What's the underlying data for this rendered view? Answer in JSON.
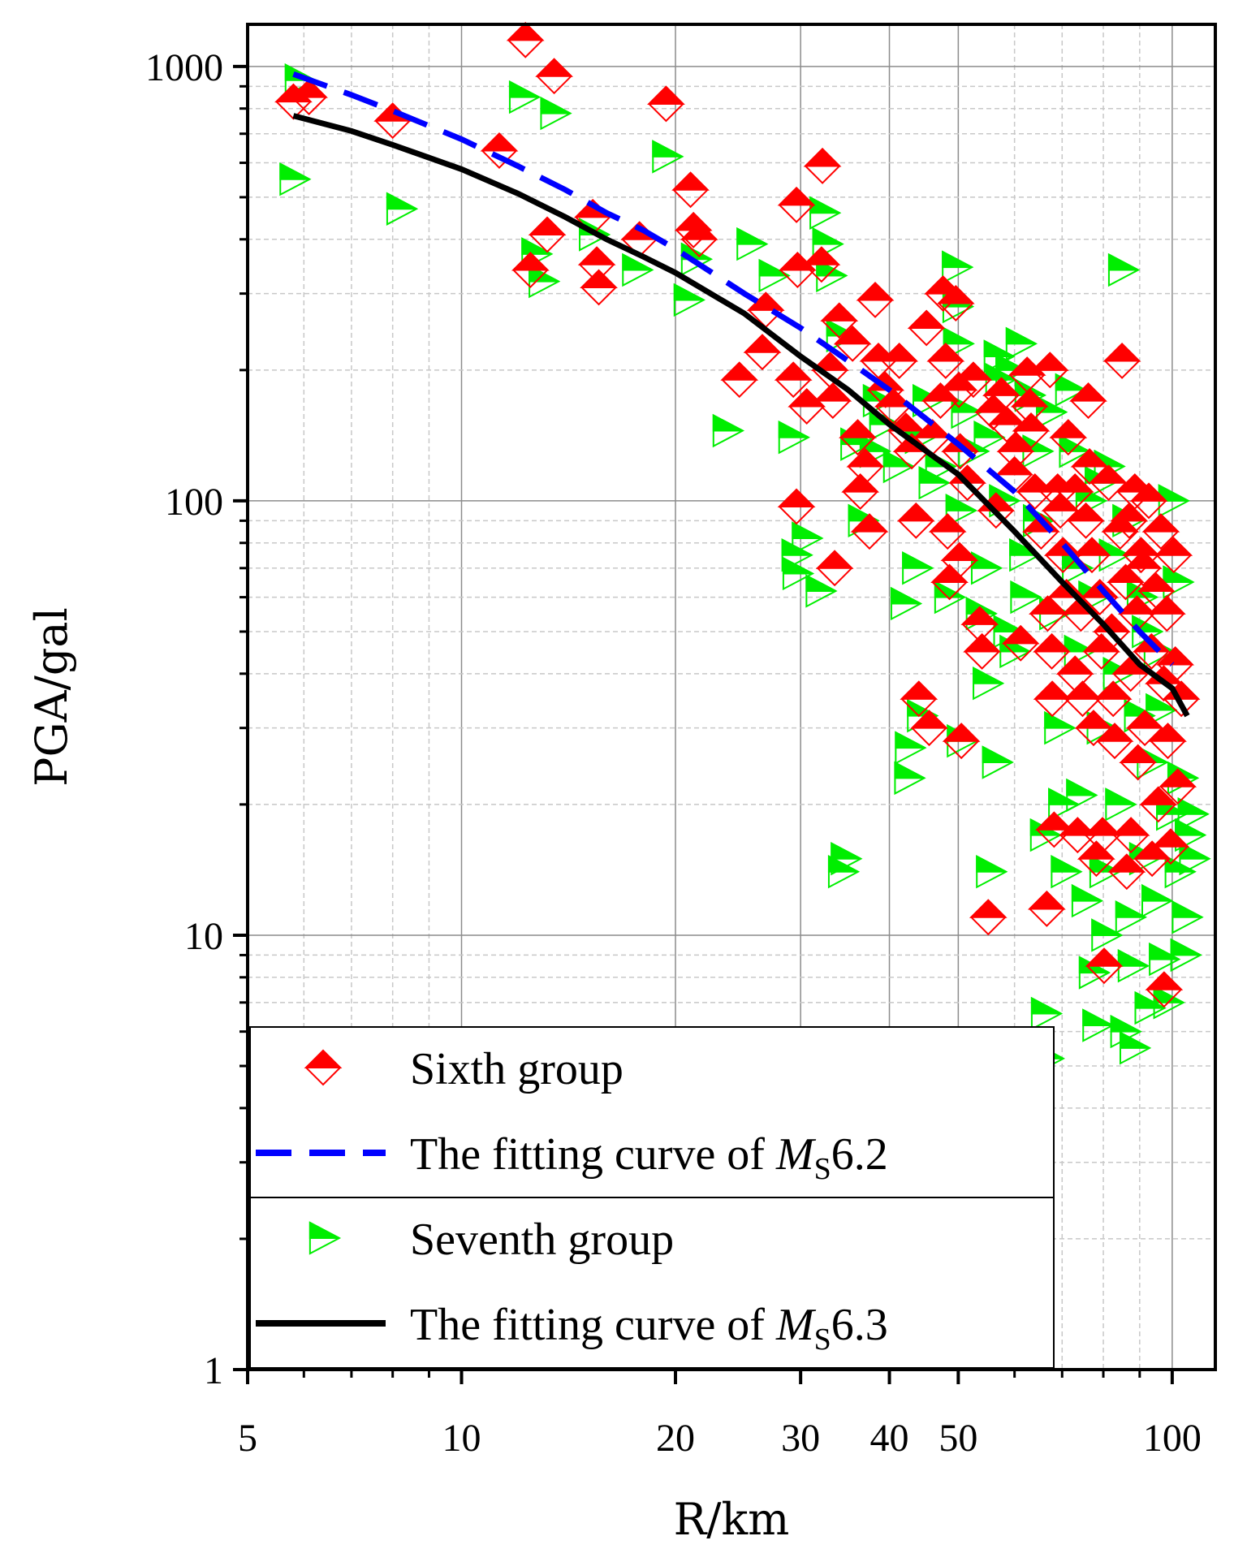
{
  "chart_data": {
    "type": "scatter",
    "xscale": "log",
    "yscale": "log",
    "xlabel": "R/km",
    "ylabel": "PGA/gal",
    "xlim": [
      5,
      115
    ],
    "ylim": [
      1,
      1250
    ],
    "xticks": [
      5,
      10,
      20,
      30,
      40,
      50,
      100
    ],
    "xtick_labels": [
      "5",
      "10",
      "20",
      "30",
      "40",
      "50",
      "100"
    ],
    "yticks": [
      1,
      10,
      100,
      1000
    ],
    "ytick_labels": [
      "1",
      "10",
      "100",
      "1000"
    ],
    "grid": true,
    "legend_position": "lower-left",
    "colors": {
      "sixth": "#ff0000",
      "seventh": "#00ee00",
      "fit62": "#0000ff",
      "fit63": "#000000"
    },
    "legend": [
      {
        "label": "Sixth group",
        "marker": "diamond",
        "series": "sixth"
      },
      {
        "label_prefix": "The fitting curve of ",
        "label_var": "M",
        "label_sub": "S",
        "label_suffix": "6.2",
        "line": "dashed",
        "series": "fit62"
      },
      {
        "label": "Seventh group",
        "marker": "triangle-right",
        "series": "seventh"
      },
      {
        "label_prefix": "The fitting curve of ",
        "label_var": "M",
        "label_sub": "S",
        "label_suffix": "6.3",
        "line": "solid",
        "series": "fit63"
      }
    ],
    "series": [
      {
        "name": "Sixth group",
        "key": "sixth",
        "points": [
          [
            5.8,
            830
          ],
          [
            6.1,
            850
          ],
          [
            8.0,
            750
          ],
          [
            11.3,
            640
          ],
          [
            12.3,
            1150
          ],
          [
            13.5,
            950
          ],
          [
            12.5,
            340
          ],
          [
            13.2,
            410
          ],
          [
            15.3,
            450
          ],
          [
            15.5,
            350
          ],
          [
            15.6,
            310
          ],
          [
            17.8,
            400
          ],
          [
            19.4,
            820
          ],
          [
            21.0,
            520
          ],
          [
            21.2,
            420
          ],
          [
            21.6,
            400
          ],
          [
            24.6,
            190
          ],
          [
            26.5,
            220
          ],
          [
            26.8,
            275
          ],
          [
            29.6,
            480
          ],
          [
            29.7,
            340
          ],
          [
            29.3,
            190
          ],
          [
            30.6,
            165
          ],
          [
            29.6,
            97
          ],
          [
            32.2,
            590
          ],
          [
            32.1,
            350
          ],
          [
            33.0,
            200
          ],
          [
            33.3,
            170
          ],
          [
            33.5,
            70
          ],
          [
            34.0,
            260
          ],
          [
            35.5,
            230
          ],
          [
            36.1,
            140
          ],
          [
            36.4,
            105
          ],
          [
            37.0,
            120
          ],
          [
            37.5,
            85
          ],
          [
            38.2,
            290
          ],
          [
            38.6,
            210
          ],
          [
            39.5,
            180
          ],
          [
            40.5,
            165
          ],
          [
            41.3,
            210
          ],
          [
            42.2,
            145
          ],
          [
            43.0,
            130
          ],
          [
            43.6,
            90
          ],
          [
            44.0,
            35
          ],
          [
            45.1,
            250
          ],
          [
            45.5,
            30
          ],
          [
            46.0,
            140
          ],
          [
            47.2,
            170
          ],
          [
            47.6,
            300
          ],
          [
            48.0,
            210
          ],
          [
            48.3,
            85
          ],
          [
            48.6,
            65
          ],
          [
            49.6,
            285
          ],
          [
            50.1,
            180
          ],
          [
            50.2,
            73
          ],
          [
            50.3,
            130
          ],
          [
            50.5,
            28
          ],
          [
            51.5,
            110
          ],
          [
            52.5,
            190
          ],
          [
            53.6,
            52
          ],
          [
            54.0,
            45
          ],
          [
            55.1,
            11
          ],
          [
            56.0,
            160
          ],
          [
            56.5,
            95
          ],
          [
            57.5,
            175
          ],
          [
            58.5,
            150
          ],
          [
            60.2,
            130
          ],
          [
            61.2,
            47
          ],
          [
            62.5,
            195
          ],
          [
            63.3,
            145
          ],
          [
            64.1,
            105
          ],
          [
            65.4,
            85
          ],
          [
            66.6,
            11.5
          ],
          [
            67.3,
            200
          ],
          [
            66.8,
            55
          ],
          [
            67.7,
            45
          ],
          [
            67.8,
            35
          ],
          [
            68.2,
            17.5
          ],
          [
            69.6,
            95
          ],
          [
            70.2,
            75
          ],
          [
            71.4,
            140
          ],
          [
            71.0,
            60
          ],
          [
            73.0,
            105
          ],
          [
            73.0,
            40
          ],
          [
            73.6,
            17
          ],
          [
            74.4,
            55
          ],
          [
            74.8,
            35
          ],
          [
            75.6,
            90
          ],
          [
            76.2,
            170
          ],
          [
            77.1,
            75
          ],
          [
            77.5,
            30
          ],
          [
            78.2,
            15
          ],
          [
            79.1,
            60
          ],
          [
            79.5,
            45
          ],
          [
            79.8,
            17
          ],
          [
            80.2,
            8.5
          ],
          [
            81.4,
            110
          ],
          [
            82.2,
            50
          ],
          [
            82.6,
            35
          ],
          [
            83.0,
            28
          ],
          [
            84.5,
            85
          ],
          [
            85.0,
            210
          ],
          [
            86.0,
            65
          ],
          [
            86.3,
            14
          ],
          [
            87.4,
            40
          ],
          [
            87.5,
            17
          ],
          [
            88.6,
            105
          ],
          [
            89.2,
            55
          ],
          [
            89.5,
            25
          ],
          [
            90.4,
            75
          ],
          [
            91.5,
            30
          ],
          [
            92.7,
            100
          ],
          [
            93.5,
            45
          ],
          [
            93.7,
            15
          ],
          [
            95.0,
            62
          ],
          [
            95.6,
            20
          ],
          [
            96.4,
            85
          ],
          [
            97.3,
            38
          ],
          [
            97.4,
            7.5
          ],
          [
            98.3,
            55
          ],
          [
            98.6,
            28
          ],
          [
            99.5,
            16
          ],
          [
            100.5,
            75
          ],
          [
            101.0,
            42
          ],
          [
            101.8,
            22
          ],
          [
            103.0,
            35
          ],
          [
            91.0,
            70
          ],
          [
            76.5,
            120
          ],
          [
            69.0,
            105
          ],
          [
            63.0,
            165
          ],
          [
            60.0,
            115
          ],
          [
            87.0,
            90
          ]
        ]
      },
      {
        "name": "Seventh group",
        "key": "seventh",
        "points": [
          [
            5.9,
            930
          ],
          [
            5.8,
            550
          ],
          [
            8.2,
            470
          ],
          [
            12.2,
            850
          ],
          [
            13.5,
            780
          ],
          [
            12.7,
            370
          ],
          [
            13.0,
            320
          ],
          [
            15.3,
            410
          ],
          [
            17.6,
            340
          ],
          [
            19.4,
            620
          ],
          [
            20.8,
            290
          ],
          [
            21.3,
            360
          ],
          [
            23.6,
            145
          ],
          [
            25.5,
            390
          ],
          [
            27.4,
            330
          ],
          [
            29.2,
            140
          ],
          [
            29.5,
            75
          ],
          [
            29.6,
            68
          ],
          [
            30.5,
            82
          ],
          [
            31.9,
            62
          ],
          [
            32.3,
            460
          ],
          [
            32.6,
            390
          ],
          [
            33.0,
            330
          ],
          [
            34.1,
            240
          ],
          [
            34.6,
            15
          ],
          [
            34.3,
            14
          ],
          [
            35.7,
            135
          ],
          [
            36.6,
            90
          ],
          [
            38.4,
            170
          ],
          [
            39.2,
            150
          ],
          [
            41.0,
            120
          ],
          [
            42.0,
            58
          ],
          [
            42.6,
            27
          ],
          [
            42.5,
            23
          ],
          [
            43.6,
            70
          ],
          [
            44.3,
            32
          ],
          [
            45.1,
            170
          ],
          [
            46.0,
            110
          ],
          [
            48.4,
            60
          ],
          [
            49.6,
            345
          ],
          [
            49.7,
            280
          ],
          [
            49.8,
            230
          ],
          [
            50.2,
            95
          ],
          [
            50.4,
            28
          ],
          [
            51.1,
            160
          ],
          [
            52.3,
            130
          ],
          [
            53.6,
            55
          ],
          [
            54.5,
            70
          ],
          [
            54.8,
            38
          ],
          [
            55.4,
            14
          ],
          [
            56.5,
            25
          ],
          [
            56.8,
            215
          ],
          [
            57.1,
            190
          ],
          [
            57.8,
            100
          ],
          [
            58.6,
            50
          ],
          [
            59.8,
            45
          ],
          [
            61.0,
            230
          ],
          [
            61.7,
            75
          ],
          [
            61.9,
            60
          ],
          [
            64.4,
            130
          ],
          [
            64.5,
            90
          ],
          [
            66.0,
            17
          ],
          [
            66.2,
            6.6
          ],
          [
            66.7,
            5.2
          ],
          [
            68.0,
            55
          ],
          [
            69.1,
            30
          ],
          [
            70.0,
            20
          ],
          [
            70.6,
            14
          ],
          [
            71.6,
            180
          ],
          [
            73.2,
            70
          ],
          [
            73.7,
            45
          ],
          [
            74.2,
            21
          ],
          [
            75.5,
            12
          ],
          [
            76.5,
            100
          ],
          [
            77.2,
            60
          ],
          [
            77.3,
            8.2
          ],
          [
            78.2,
            6.2
          ],
          [
            79.3,
            30
          ],
          [
            80.0,
            14
          ],
          [
            80.5,
            10
          ],
          [
            81.2,
            120
          ],
          [
            82.5,
            75
          ],
          [
            83.6,
            40
          ],
          [
            84.2,
            20
          ],
          [
            85.0,
            340
          ],
          [
            85.6,
            6.0
          ],
          [
            87.0,
            11
          ],
          [
            87.7,
            8.5
          ],
          [
            88.2,
            5.5
          ],
          [
            89.5,
            32
          ],
          [
            90.3,
            60
          ],
          [
            91.0,
            15
          ],
          [
            92.6,
            6.8
          ],
          [
            93.3,
            25
          ],
          [
            94.7,
            12
          ],
          [
            95.4,
            45
          ],
          [
            97.0,
            8.8
          ],
          [
            98.4,
            7.0
          ],
          [
            99.3,
            19
          ],
          [
            100.0,
            100
          ],
          [
            101.5,
            65
          ],
          [
            102.1,
            14
          ],
          [
            103.0,
            23
          ],
          [
            104.0,
            9.0
          ],
          [
            104.5,
            11
          ],
          [
            105.5,
            17
          ],
          [
            106.5,
            19
          ],
          [
            107.0,
            15
          ],
          [
            96.0,
            33
          ],
          [
            91.8,
            50
          ],
          [
            86.2,
            90
          ],
          [
            78.8,
            110
          ],
          [
            72.5,
            130
          ],
          [
            67.3,
            160
          ],
          [
            62.8,
            175
          ],
          [
            59.0,
            200
          ],
          [
            55.0,
            140
          ],
          [
            47.0,
            120
          ],
          [
            44.0,
            140
          ],
          [
            38.0,
            130
          ]
        ]
      },
      {
        "name": "The fitting curve of MS6.2",
        "key": "fit62",
        "style": "dashed",
        "points": [
          [
            5.8,
            960
          ],
          [
            7,
            860
          ],
          [
            8,
            790
          ],
          [
            10,
            680
          ],
          [
            12,
            590
          ],
          [
            14,
            520
          ],
          [
            16,
            460
          ],
          [
            18,
            420
          ],
          [
            20,
            380
          ],
          [
            25,
            300
          ],
          [
            30,
            250
          ],
          [
            35,
            210
          ],
          [
            40,
            180
          ],
          [
            50,
            135
          ],
          [
            60,
            105
          ],
          [
            70,
            80
          ],
          [
            80,
            62
          ],
          [
            90,
            50
          ],
          [
            100,
            42
          ]
        ]
      },
      {
        "name": "The fitting curve of MS6.3",
        "key": "fit63",
        "style": "solid",
        "points": [
          [
            5.8,
            770
          ],
          [
            7,
            710
          ],
          [
            8,
            660
          ],
          [
            10,
            580
          ],
          [
            12,
            510
          ],
          [
            14,
            450
          ],
          [
            16,
            400
          ],
          [
            18,
            365
          ],
          [
            20,
            335
          ],
          [
            25,
            270
          ],
          [
            30,
            215
          ],
          [
            35,
            180
          ],
          [
            40,
            150
          ],
          [
            50,
            115
          ],
          [
            60,
            85
          ],
          [
            70,
            65
          ],
          [
            80,
            52
          ],
          [
            90,
            42
          ],
          [
            100,
            37
          ],
          [
            105,
            32
          ]
        ]
      }
    ]
  }
}
